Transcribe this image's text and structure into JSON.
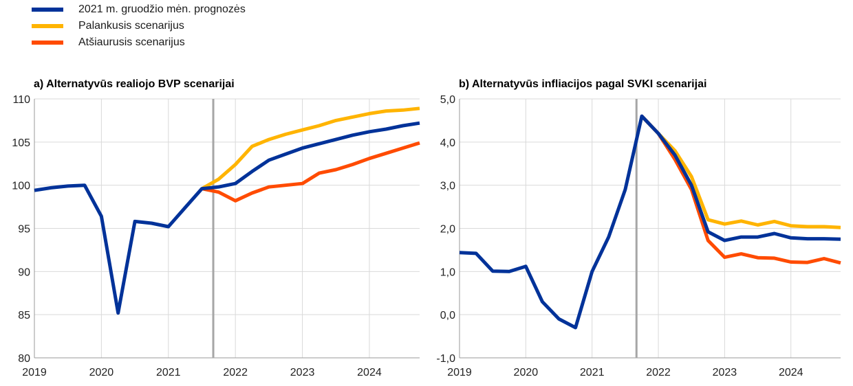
{
  "legend": [
    {
      "label": "2021 m. gruodžio mėn. prognozės",
      "color": "#003299"
    },
    {
      "label": "Palankusis scenarijus",
      "color": "#FFB400"
    },
    {
      "label": "Atšiaurusis scenarijus",
      "color": "#FF4B00"
    }
  ],
  "chart_data": [
    {
      "type": "line",
      "title": "a) Alternatyvūs realiojo BVP scenarijai",
      "xlabel": "",
      "ylabel": "",
      "x_ticks": [
        "2019",
        "2020",
        "2021",
        "2022",
        "2023",
        "2024"
      ],
      "y_ticks": [
        "80",
        "85",
        "90",
        "95",
        "100",
        "105",
        "110"
      ],
      "ylim": [
        80,
        110
      ],
      "xlim": [
        2019.0,
        2024.75
      ],
      "grid": true,
      "vline_x": 2021.67,
      "series": [
        {
          "name": "2021 m. gruodžio mėn. prognozės",
          "color": "#003299",
          "x": [
            2019.0,
            2019.25,
            2019.5,
            2019.75,
            2020.0,
            2020.25,
            2020.5,
            2020.75,
            2021.0,
            2021.25,
            2021.5,
            2021.75,
            2022.0,
            2022.25,
            2022.5,
            2022.75,
            2023.0,
            2023.25,
            2023.5,
            2023.75,
            2024.0,
            2024.25,
            2024.5,
            2024.75
          ],
          "y": [
            99.4,
            99.7,
            99.9,
            100.0,
            96.4,
            85.2,
            95.8,
            95.6,
            95.2,
            97.4,
            99.6,
            99.8,
            100.2,
            101.6,
            102.9,
            103.6,
            104.3,
            104.8,
            105.3,
            105.8,
            106.2,
            106.5,
            106.9,
            107.2
          ]
        },
        {
          "name": "Palankusis scenarijus",
          "color": "#FFB400",
          "x": [
            2021.5,
            2021.75,
            2022.0,
            2022.25,
            2022.5,
            2022.75,
            2023.0,
            2023.25,
            2023.5,
            2023.75,
            2024.0,
            2024.25,
            2024.5,
            2024.75
          ],
          "y": [
            99.6,
            100.7,
            102.4,
            104.5,
            105.3,
            105.9,
            106.4,
            106.9,
            107.5,
            107.9,
            108.3,
            108.6,
            108.7,
            108.9
          ]
        },
        {
          "name": "Atšiaurusis scenarijus",
          "color": "#FF4B00",
          "x": [
            2021.5,
            2021.75,
            2022.0,
            2022.25,
            2022.5,
            2022.75,
            2023.0,
            2023.25,
            2023.5,
            2023.75,
            2024.0,
            2024.25,
            2024.5,
            2024.75
          ],
          "y": [
            99.6,
            99.2,
            98.2,
            99.1,
            99.8,
            100.0,
            100.2,
            101.4,
            101.8,
            102.4,
            103.1,
            103.7,
            104.3,
            104.9
          ]
        }
      ]
    },
    {
      "type": "line",
      "title": "b) Alternatyvūs infliacijos pagal SVKI scenarijai",
      "xlabel": "",
      "ylabel": "",
      "x_ticks": [
        "2019",
        "2020",
        "2021",
        "2022",
        "2023",
        "2024"
      ],
      "y_ticks": [
        "-1,0",
        "0,0",
        "1,0",
        "2,0",
        "3,0",
        "4,0",
        "5,0"
      ],
      "ylim": [
        -1.0,
        5.0
      ],
      "xlim": [
        2019.0,
        2024.75
      ],
      "grid": true,
      "vline_x": 2021.67,
      "series": [
        {
          "name": "2021 m. gruodžio mėn. prognozės",
          "color": "#003299",
          "x": [
            2019.0,
            2019.25,
            2019.5,
            2019.75,
            2020.0,
            2020.25,
            2020.5,
            2020.75,
            2021.0,
            2021.25,
            2021.5,
            2021.75,
            2022.0,
            2022.25,
            2022.5,
            2022.75,
            2023.0,
            2023.25,
            2023.5,
            2023.75,
            2024.0,
            2024.25,
            2024.5,
            2024.75
          ],
          "y": [
            1.44,
            1.42,
            1.01,
            1.0,
            1.12,
            0.3,
            -0.1,
            -0.3,
            1.0,
            1.8,
            2.9,
            4.6,
            4.2,
            3.7,
            3.0,
            1.92,
            1.72,
            1.8,
            1.8,
            1.88,
            1.78,
            1.76,
            1.76,
            1.75
          ]
        },
        {
          "name": "Palankusis scenarijus",
          "color": "#FFB400",
          "x": [
            2021.75,
            2022.0,
            2022.25,
            2022.5,
            2022.75,
            2023.0,
            2023.25,
            2023.5,
            2023.75,
            2024.0,
            2024.25,
            2024.5,
            2024.75
          ],
          "y": [
            4.6,
            4.2,
            3.8,
            3.2,
            2.2,
            2.1,
            2.17,
            2.08,
            2.16,
            2.06,
            2.04,
            2.04,
            2.02
          ]
        },
        {
          "name": "Atšiaurusis scenarijus",
          "color": "#FF4B00",
          "x": [
            2021.75,
            2022.0,
            2022.25,
            2022.5,
            2022.75,
            2023.0,
            2023.25,
            2023.5,
            2023.75,
            2024.0,
            2024.25,
            2024.5,
            2024.75
          ],
          "y": [
            4.6,
            4.2,
            3.6,
            2.9,
            1.72,
            1.33,
            1.41,
            1.32,
            1.31,
            1.22,
            1.21,
            1.3,
            1.2
          ]
        }
      ]
    }
  ]
}
